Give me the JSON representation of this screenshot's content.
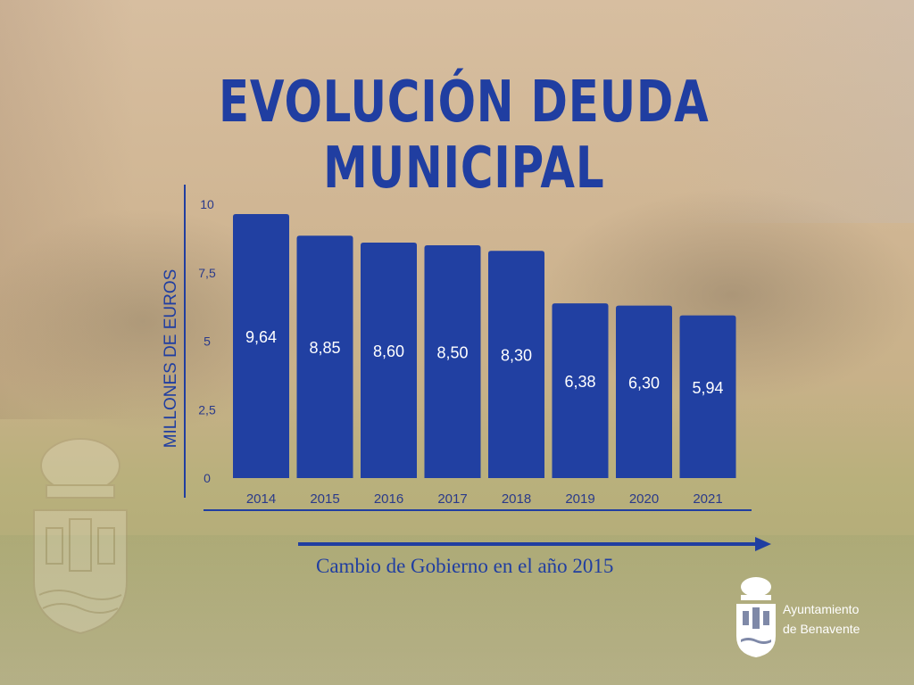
{
  "title": "EVOLUCIÓN DEUDA MUNICIPAL",
  "note": "Cambio de Gobierno en el año 2015",
  "logo": {
    "line1": "Ayuntamiento",
    "line2": "de Benavente"
  },
  "colors": {
    "bar": "#2140a2",
    "text": "#203ea1",
    "background": "#c9b38f"
  },
  "chart_data": {
    "type": "bar",
    "title": "EVOLUCIÓN DEUDA MUNICIPAL",
    "xlabel": "",
    "ylabel": "MILLONES DE EUROS",
    "categories": [
      "2014",
      "2015",
      "2016",
      "2017",
      "2018",
      "2019",
      "2020",
      "2021"
    ],
    "values": [
      9.64,
      8.85,
      8.6,
      8.5,
      8.3,
      6.38,
      6.3,
      5.94
    ],
    "value_labels": [
      "9,64",
      "8,85",
      "8,60",
      "8,50",
      "8,30",
      "6,38",
      "6,30",
      "5,94"
    ],
    "yticks": [
      0,
      2.5,
      5,
      7.5,
      10
    ],
    "ytick_labels": [
      "0",
      "2,5",
      "5",
      "7,5",
      "10"
    ],
    "ylim": [
      0,
      10
    ],
    "grid": false,
    "legend": "none"
  }
}
